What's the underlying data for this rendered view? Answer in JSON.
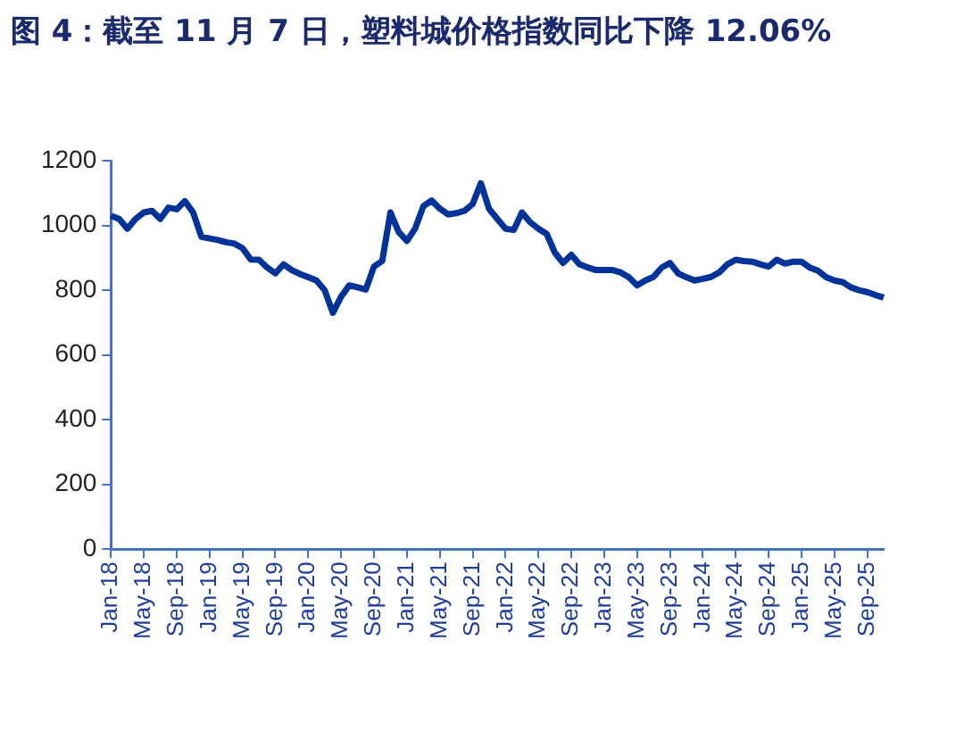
{
  "chart_data": {
    "type": "line",
    "title": "图 4：截至 11 月 7 日，塑料城价格指数同比下降 12.06%",
    "categories": [
      "Jan-18",
      null,
      null,
      null,
      "May-18",
      null,
      null,
      null,
      "Sep-18",
      null,
      null,
      null,
      "Jan-19",
      null,
      null,
      null,
      "May-19",
      null,
      null,
      null,
      "Sep-19",
      null,
      null,
      null,
      "Jan-20",
      null,
      null,
      null,
      "May-20",
      null,
      null,
      null,
      "Sep-20",
      null,
      null,
      null,
      "Jan-21",
      null,
      null,
      null,
      "May-21",
      null,
      null,
      null,
      "Sep-21",
      null,
      null,
      null,
      "Jan-22",
      null,
      null,
      null,
      "May-22",
      null,
      null,
      null,
      "Sep-22",
      null,
      null,
      null,
      "Jan-23",
      null,
      null,
      null,
      "May-23",
      null,
      null,
      null,
      "Sep-23",
      null,
      null,
      null,
      "Jan-24",
      null,
      null,
      null,
      "May-24",
      null,
      null,
      null,
      "Sep-24",
      null,
      null,
      null,
      "Jan-25",
      null,
      null,
      null,
      "May-25",
      null,
      null,
      null,
      "Sep-25",
      null,
      null
    ],
    "series": [
      {
        "color": "#003399",
        "values": [
          1030,
          1020,
          990,
          1020,
          1040,
          1045,
          1020,
          1055,
          1050,
          1075,
          1040,
          965,
          960,
          955,
          948,
          944,
          930,
          895,
          894,
          870,
          852,
          880,
          862,
          850,
          840,
          830,
          800,
          730,
          780,
          815,
          809,
          802,
          873,
          890,
          1040,
          980,
          952,
          990,
          1059,
          1077,
          1052,
          1034,
          1038,
          1045,
          1066,
          1130,
          1051,
          1020,
          990,
          986,
          1040,
          1010,
          990,
          974,
          916,
          884,
          909,
          880,
          870,
          862,
          862,
          862,
          855,
          840,
          815,
          830,
          841,
          870,
          884,
          852,
          840,
          830,
          835,
          841,
          855,
          880,
          894,
          890,
          888,
          880,
          873,
          894,
          882,
          888,
          888,
          870,
          860,
          840,
          830,
          825,
          809,
          800,
          794,
          785,
          777
        ]
      }
    ],
    "ylim": [
      0,
      1200
    ],
    "yticks": [
      0,
      200,
      400,
      600,
      800,
      1000,
      1200
    ],
    "grid": false,
    "legend": false,
    "marker": "none",
    "line_style": "solid"
  }
}
